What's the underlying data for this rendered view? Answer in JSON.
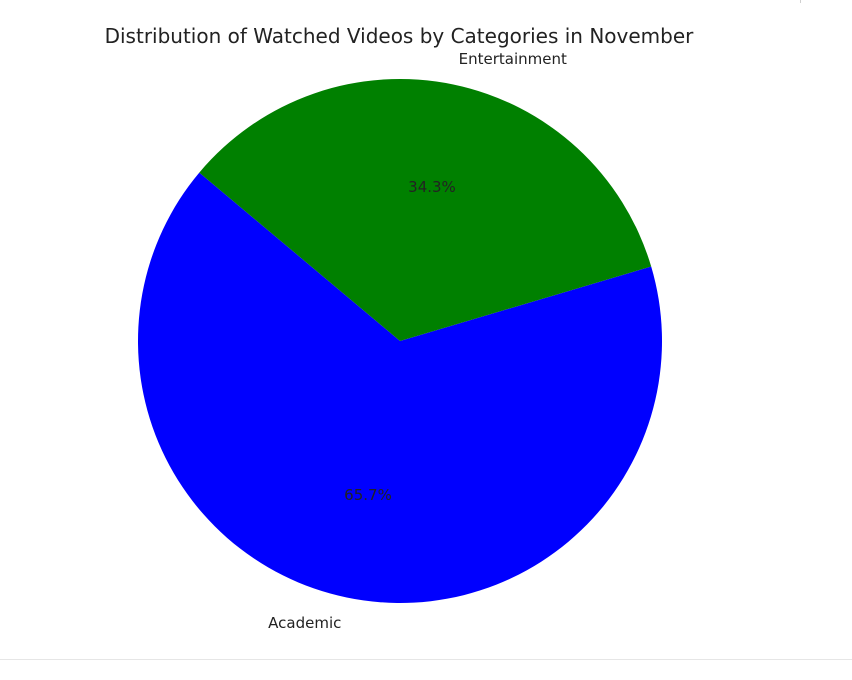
{
  "chart_data": {
    "type": "pie",
    "title": "Distribution of Watched Videos by Categories in November",
    "categories": [
      "Academic",
      "Entertainment"
    ],
    "values": [
      65.7,
      34.3
    ],
    "percent_labels": [
      "65.7%",
      "34.3%"
    ],
    "colors": [
      "#0000ff",
      "#008000"
    ],
    "start_angle_deg": 140,
    "legend": "none"
  }
}
